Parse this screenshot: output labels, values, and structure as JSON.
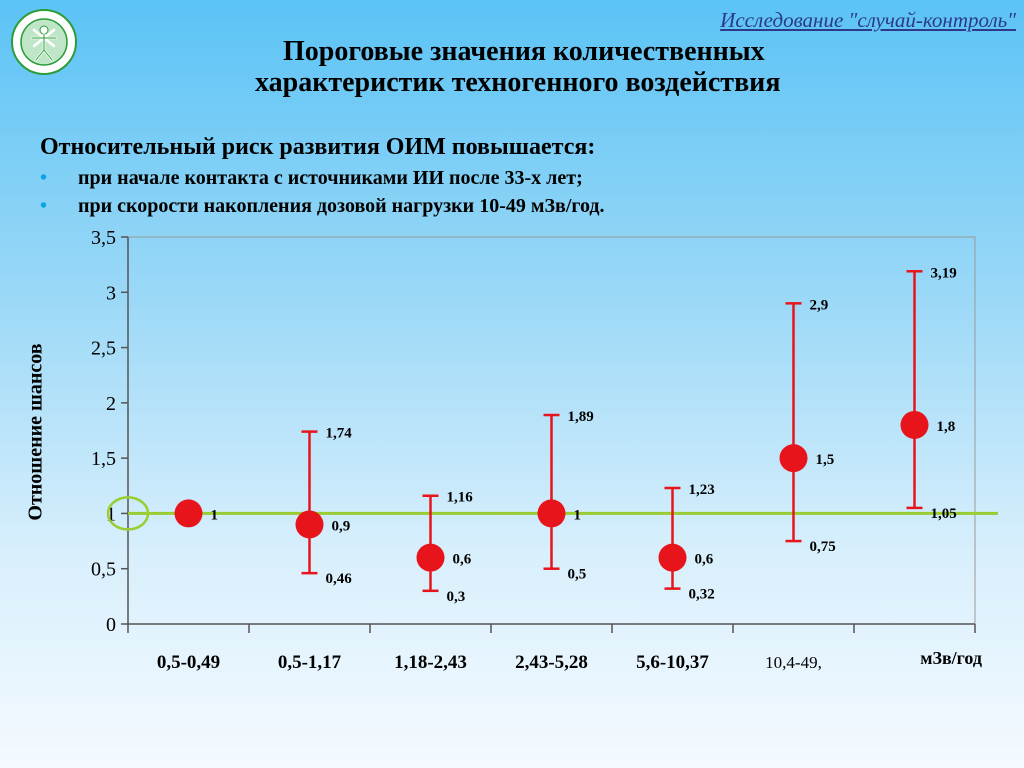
{
  "header": {
    "subtitle": "Исследование \"случай-контроль\"",
    "title_line1": "Пороговые значения количественных",
    "title_line2": "характеристик техногенного воздействия"
  },
  "intro": "Относительный риск развития ОИМ повышается:",
  "bullets": [
    "при начале контакта с источниками ИИ после 33-х лет;",
    "при скорости накопления дозовой нагрузки 10-49 мЗв/год."
  ],
  "colors": {
    "marker": "#e8141b",
    "reference_line": "#9acd32",
    "axis": "#555555",
    "logo_ring": "#2a9d3a"
  },
  "chart_data": {
    "type": "scatter",
    "ylabel": "Отношение шансов",
    "xunit": "мЗв/год",
    "ylim": [
      0,
      3.5
    ],
    "yticks": [
      "0",
      "0,5",
      "1",
      "1,5",
      "2",
      "2,5",
      "3",
      "3,5"
    ],
    "reference_value": 1,
    "categories": [
      "0,5-0,49",
      "0,5-1,17",
      "1,18-2,43",
      "2,43-5,28",
      "5,6-10,37",
      "10,4-49,",
      ""
    ],
    "points": [
      {
        "value": 1.0,
        "label": "1",
        "lower": null,
        "upper": null,
        "lower_label": "",
        "upper_label": ""
      },
      {
        "value": 0.9,
        "label": "0,9",
        "lower": 0.46,
        "upper": 1.74,
        "lower_label": "0,46",
        "upper_label": "1,74"
      },
      {
        "value": 0.6,
        "label": "0,6",
        "lower": 0.3,
        "upper": 1.16,
        "lower_label": "0,3",
        "upper_label": "1,16"
      },
      {
        "value": 1.0,
        "label": "1",
        "lower": 0.5,
        "upper": 1.89,
        "lower_label": "0,5",
        "upper_label": "1,89"
      },
      {
        "value": 0.6,
        "label": "0,6",
        "lower": 0.32,
        "upper": 1.23,
        "lower_label": "0,32",
        "upper_label": "1,23"
      },
      {
        "value": 1.5,
        "label": "1,5",
        "lower": 0.75,
        "upper": 2.9,
        "lower_label": "0,75",
        "upper_label": "2,9"
      },
      {
        "value": 1.8,
        "label": "1,8",
        "lower": 1.05,
        "upper": 3.19,
        "lower_label": "1,05",
        "upper_label": "3,19"
      }
    ]
  }
}
